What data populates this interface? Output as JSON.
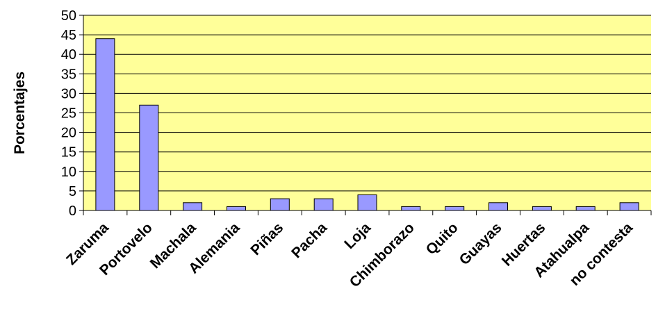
{
  "chart_data": {
    "type": "bar",
    "title": "",
    "xlabel": "",
    "ylabel": "Porcentajes",
    "ylim": [
      0,
      50
    ],
    "ytick_step": 5,
    "grid": true,
    "legend": "none",
    "categories": [
      "Zaruma",
      "Portovelo",
      "Machala",
      "Alemania",
      "Piñas",
      "Pacha",
      "Loja",
      "Chimborazo",
      "Quito",
      "Guayas",
      "Huertas",
      "Atahualpa",
      "no contesta"
    ],
    "values": [
      44,
      27,
      2,
      1,
      3,
      3,
      4,
      1,
      1,
      2,
      1,
      1,
      2
    ],
    "colors": {
      "plot_background": "#FFFF99",
      "bar_fill": "#9999FF",
      "bar_stroke": "#000000",
      "gridline": "#000000"
    }
  }
}
